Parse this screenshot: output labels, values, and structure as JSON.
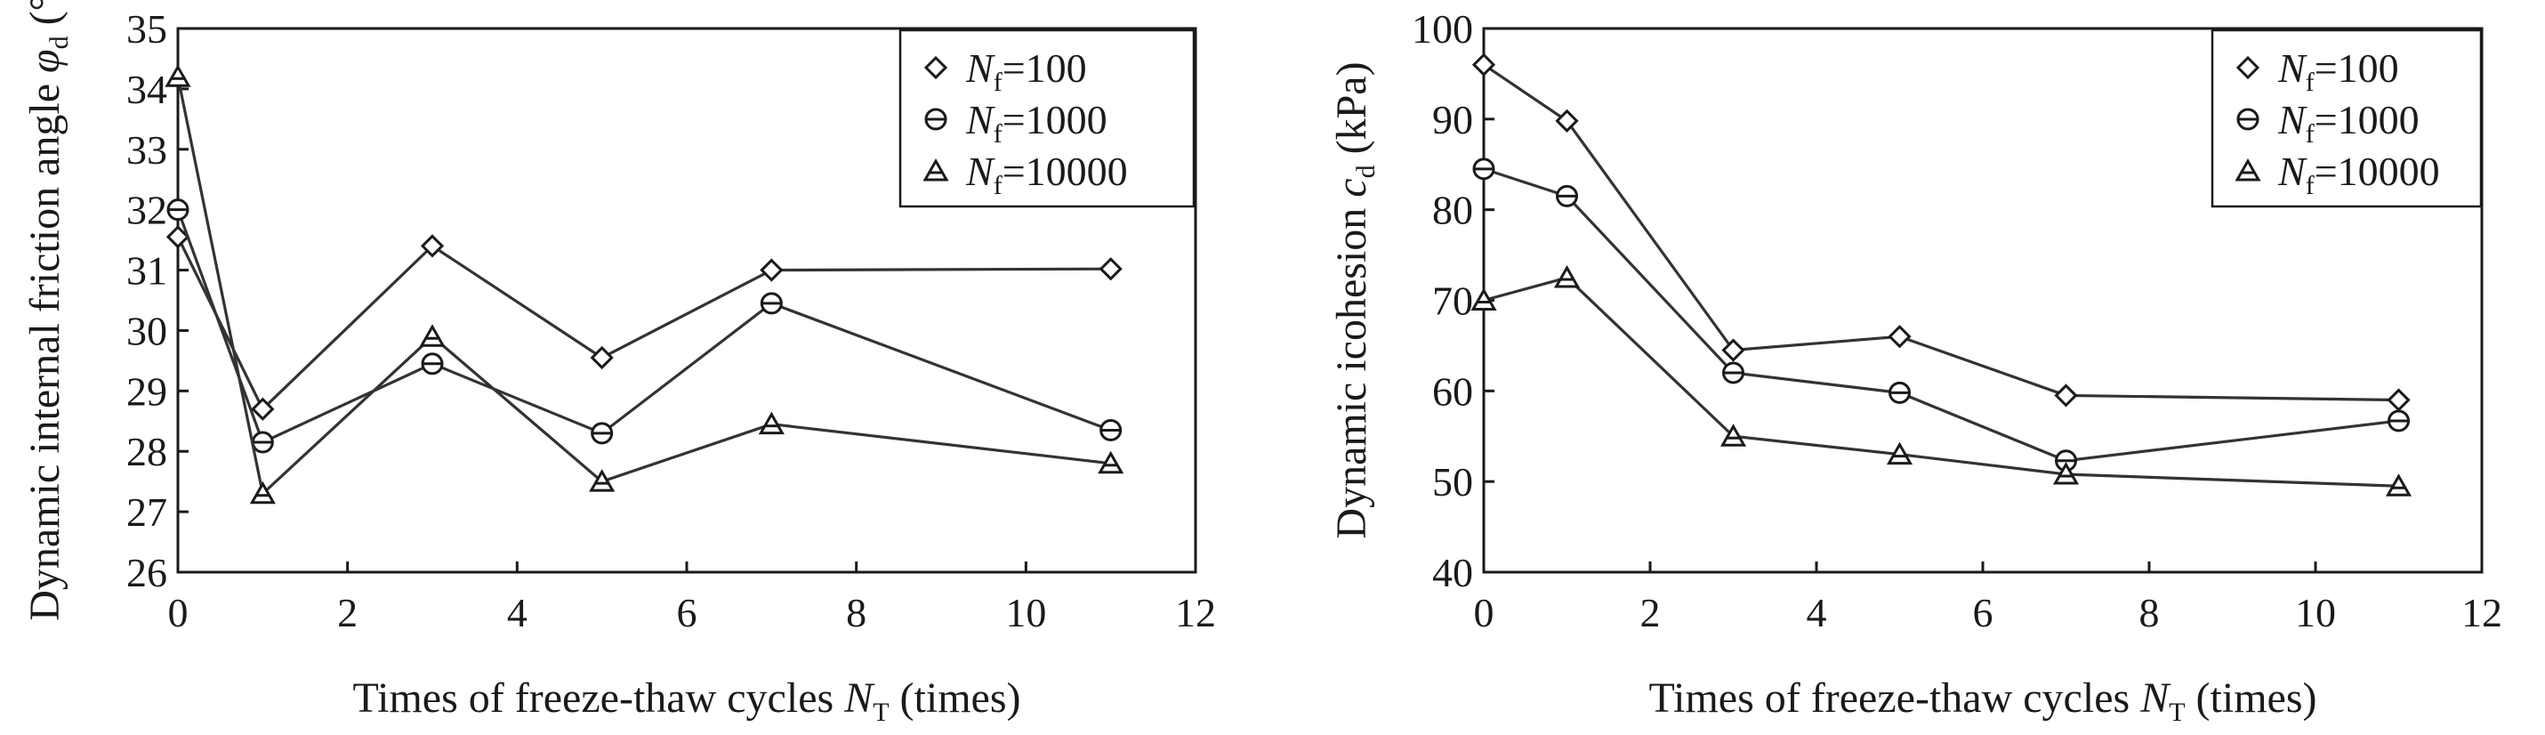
{
  "chart_data": [
    {
      "type": "line",
      "title": "",
      "xlabel": {
        "main": "Times of freeze-thaw cycles ",
        "var": "N",
        "sub": "T",
        "tail": " (times)"
      },
      "ylabel": {
        "main": "Dynamic internal friction angle ",
        "var": "φ",
        "sub": "d",
        "tail": " (°)"
      },
      "xlim": [
        0,
        12
      ],
      "ylim": [
        26,
        35
      ],
      "xticks": [
        0,
        2,
        4,
        6,
        8,
        10,
        12
      ],
      "yticks": [
        26,
        27,
        28,
        29,
        30,
        31,
        32,
        33,
        34,
        35
      ],
      "x": [
        0,
        1,
        3,
        5,
        7,
        11
      ],
      "grid": false,
      "legend_position": "top-right",
      "series": [
        {
          "name": {
            "var": "N",
            "sub": "f",
            "eq": "=100"
          },
          "marker": "diamond",
          "values": [
            31.55,
            28.7,
            31.4,
            29.55,
            31.0,
            31.02
          ]
        },
        {
          "name": {
            "var": "N",
            "sub": "f",
            "eq": "=1000"
          },
          "marker": "circle",
          "values": [
            32.0,
            28.15,
            29.45,
            28.3,
            30.45,
            28.35
          ]
        },
        {
          "name": {
            "var": "N",
            "sub": "f",
            "eq": "=10000"
          },
          "marker": "triangle",
          "values": [
            34.2,
            27.3,
            29.9,
            27.5,
            28.45,
            27.8
          ]
        }
      ]
    },
    {
      "type": "line",
      "title": "",
      "xlabel": {
        "main": "Times of freeze-thaw cycles ",
        "var": "N",
        "sub": "T",
        "tail": " (times)"
      },
      "ylabel": {
        "main": "Dynamic icohesion ",
        "var": "c",
        "sub": "d",
        "tail": " (kPa)"
      },
      "xlim": [
        0,
        12
      ],
      "ylim": [
        40,
        100
      ],
      "xticks": [
        0,
        2,
        4,
        6,
        8,
        10,
        12
      ],
      "yticks": [
        40,
        50,
        60,
        70,
        80,
        90,
        100
      ],
      "x": [
        0,
        1,
        3,
        5,
        7,
        11
      ],
      "grid": false,
      "legend_position": "top-right",
      "series": [
        {
          "name": {
            "var": "N",
            "sub": "f",
            "eq": "=100"
          },
          "marker": "diamond",
          "values": [
            96.0,
            89.8,
            64.5,
            66.0,
            59.5,
            59.0
          ]
        },
        {
          "name": {
            "var": "N",
            "sub": "f",
            "eq": "=1000"
          },
          "marker": "circle",
          "values": [
            84.5,
            81.5,
            62.0,
            59.8,
            52.3,
            56.7
          ]
        },
        {
          "name": {
            "var": "N",
            "sub": "f",
            "eq": "=10000"
          },
          "marker": "triangle",
          "values": [
            70.0,
            72.5,
            55.0,
            53.0,
            50.8,
            49.5
          ]
        }
      ]
    }
  ]
}
